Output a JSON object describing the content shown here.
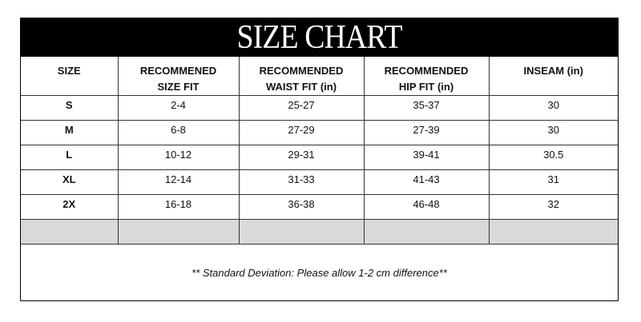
{
  "title": "SIZE CHART",
  "headers": [
    [
      "SIZE",
      ""
    ],
    [
      "RECOMMENED",
      "SIZE FIT"
    ],
    [
      "RECOMMENDED",
      "WAIST FIT (in)"
    ],
    [
      "RECOMMENDED",
      "HIP FIT (in)"
    ],
    [
      "INSEAM (in)",
      ""
    ]
  ],
  "rows": [
    [
      "S",
      "2-4",
      "25-27",
      "35-37",
      "30"
    ],
    [
      "M",
      "6-8",
      "27-29",
      "27-39",
      "30"
    ],
    [
      "L",
      "10-12",
      "29-31",
      "39-41",
      "30.5"
    ],
    [
      "XL",
      "12-14",
      "31-33",
      "41-43",
      "31"
    ],
    [
      "2X",
      "16-18",
      "36-38",
      "46-48",
      "32"
    ]
  ],
  "note": "** Standard Deviation: Please allow 1-2 cm difference**",
  "colors": {
    "title_bg": "#000000",
    "empty_row": "#d9d9d9"
  }
}
